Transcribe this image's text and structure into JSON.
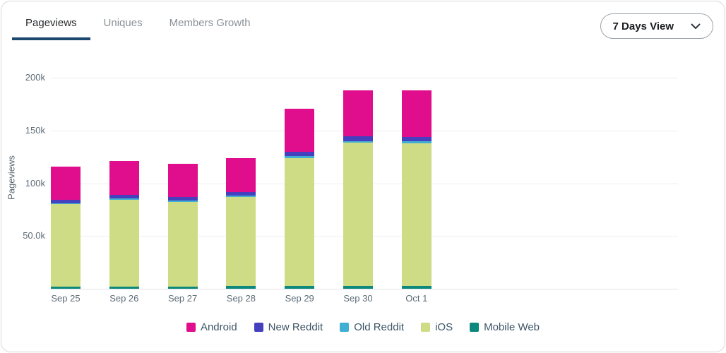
{
  "header": {
    "tabs": [
      {
        "label": "Pageviews",
        "active": true
      },
      {
        "label": "Uniques",
        "active": false
      },
      {
        "label": "Members Growth",
        "active": false
      }
    ],
    "period_selector": {
      "label": "7 Days View",
      "icon": "chevron-down-icon"
    }
  },
  "colors": {
    "active_tab_underline": "#1b486d",
    "active_tab_text": "#26292c",
    "inactive_tab_text": "#8a9197",
    "axis_text": "#5d6b76",
    "gridline": "#ededf2",
    "card_border": "#d8d8d8"
  },
  "chart_data": {
    "type": "bar",
    "variant": "stacked",
    "title": "",
    "xlabel": "",
    "ylabel": "Pageviews",
    "units": "pageviews",
    "grid": "horizontal",
    "legend_position": "bottom-center",
    "ylim": [
      0,
      200000
    ],
    "y_ticks": [
      {
        "label": "50.0k",
        "value": 50000
      },
      {
        "label": "100k",
        "value": 100000
      },
      {
        "label": "150k",
        "value": 150000
      },
      {
        "label": "200k",
        "value": 200000
      }
    ],
    "categories": [
      "Sep 25",
      "Sep 26",
      "Sep 27",
      "Sep 28",
      "Sep 29",
      "Sep 30",
      "Oct 1"
    ],
    "series": [
      {
        "name": "Android",
        "color": "#e00d8c",
        "values": [
          31500,
          32000,
          31500,
          32000,
          41000,
          43500,
          44500
        ]
      },
      {
        "name": "New Reddit",
        "color": "#4540be",
        "values": [
          3500,
          3500,
          3500,
          3500,
          3500,
          4500,
          4000
        ]
      },
      {
        "name": "Old Reddit",
        "color": "#41afd3",
        "values": [
          1000,
          1000,
          1000,
          1000,
          2000,
          1500,
          1500
        ]
      },
      {
        "name": "iOS",
        "color": "#cfdc86",
        "values": [
          78000,
          82500,
          80500,
          84500,
          121500,
          136000,
          135500
        ]
      },
      {
        "name": "Mobile Web",
        "color": "#0c897c",
        "values": [
          2000,
          2000,
          2000,
          2500,
          2500,
          2500,
          2500
        ]
      }
    ],
    "stack_order_bottom_to_top": [
      "Mobile Web",
      "iOS",
      "Old Reddit",
      "New Reddit",
      "Android"
    ],
    "totals": [
      116000,
      121000,
      118500,
      123500,
      170500,
      188000,
      188000
    ]
  }
}
